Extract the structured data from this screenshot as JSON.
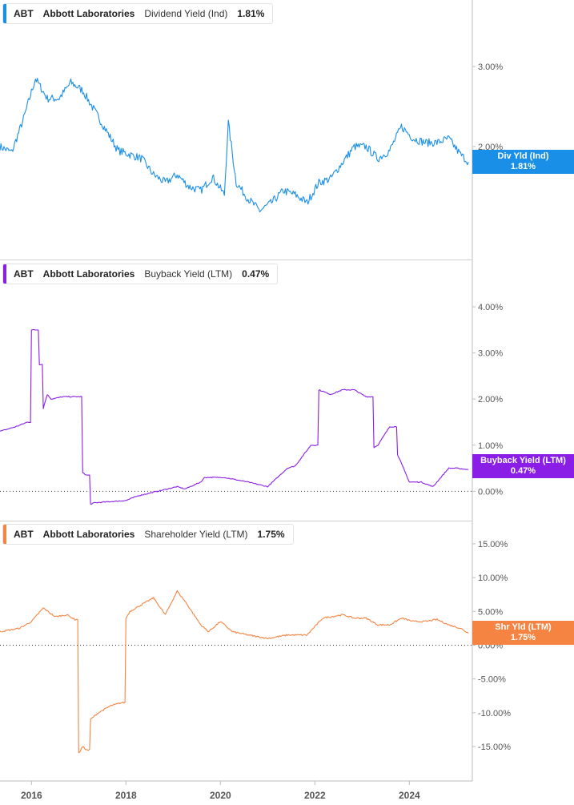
{
  "colors": {
    "dividend": "#1a8fe8",
    "buyback": "#8a1ee6",
    "shareholder": "#f58442",
    "axis": "#bdbdbd",
    "tick_text": "#555555"
  },
  "panels": [
    {
      "ticker": "ABT",
      "company": "Abbott Laboratories",
      "metric": "Dividend Yield (Ind)",
      "value": "1.81%",
      "badge_line1": "Div Yld (Ind)",
      "badge_line2": "1.81%"
    },
    {
      "ticker": "ABT",
      "company": "Abbott Laboratories",
      "metric": "Buyback Yield (LTM)",
      "value": "0.47%",
      "badge_line1": "Buyback Yield (LTM)",
      "badge_line2": "0.47%"
    },
    {
      "ticker": "ABT",
      "company": "Abbott Laboratories",
      "metric": "Shareholder Yield (LTM)",
      "value": "1.75%",
      "badge_line1": "Shr Yld (LTM)",
      "badge_line2": "1.75%"
    }
  ],
  "chart_data": [
    {
      "type": "line",
      "title": "ABT Abbott Laboratories Dividend Yield (Ind) 1.81%",
      "xlabel": "",
      "ylabel": "",
      "x_tick_labels": [
        "2016",
        "2018",
        "2020",
        "2022",
        "2024"
      ],
      "y_tick_labels": [
        "2.00%",
        "3.00%"
      ],
      "y_ticks": [
        2.0,
        3.0
      ],
      "ylim": [
        0.65,
        3.55
      ],
      "xlim": [
        "2015-05-01",
        "2025-05-01"
      ],
      "grid": false,
      "series": [
        {
          "name": "Dividend Yield (Ind)",
          "x": [
            "2015-05",
            "2015-08",
            "2015-11",
            "2016-02",
            "2016-05",
            "2016-08",
            "2016-11",
            "2017-02",
            "2017-05",
            "2017-08",
            "2017-11",
            "2018-02",
            "2018-05",
            "2018-08",
            "2018-11",
            "2019-02",
            "2019-05",
            "2019-08",
            "2019-11",
            "2020-02",
            "2020-03",
            "2020-05",
            "2020-08",
            "2020-11",
            "2021-02",
            "2021-05",
            "2021-08",
            "2021-11",
            "2022-02",
            "2022-05",
            "2022-08",
            "2022-11",
            "2023-02",
            "2023-05",
            "2023-08",
            "2023-11",
            "2024-02",
            "2024-05",
            "2024-08",
            "2024-11",
            "2025-02",
            "2025-04"
          ],
          "values": [
            2.0,
            1.93,
            2.35,
            2.85,
            2.6,
            2.6,
            2.8,
            2.7,
            2.45,
            2.2,
            1.95,
            1.9,
            1.85,
            1.65,
            1.55,
            1.65,
            1.5,
            1.45,
            1.62,
            1.4,
            2.3,
            1.55,
            1.35,
            1.2,
            1.3,
            1.45,
            1.4,
            1.3,
            1.55,
            1.6,
            1.8,
            2.0,
            2.0,
            1.85,
            1.95,
            2.25,
            2.1,
            2.05,
            2.05,
            2.1,
            1.9,
            1.81
          ]
        }
      ]
    },
    {
      "type": "line",
      "title": "ABT Abbott Laboratories Buyback Yield (LTM) 0.47%",
      "xlabel": "",
      "ylabel": "",
      "x_tick_labels": [
        "2016",
        "2018",
        "2020",
        "2022",
        "2024"
      ],
      "y_tick_labels": [
        "0.00%",
        "1.00%",
        "2.00%",
        "3.00%",
        "4.00%"
      ],
      "y_ticks": [
        0,
        1,
        2,
        3,
        4
      ],
      "ylim": [
        -0.55,
        4.4
      ],
      "xlim": [
        "2015-05-01",
        "2025-05-01"
      ],
      "grid": false,
      "series": [
        {
          "name": "Buyback Yield (LTM)",
          "x": [
            "2015-05",
            "2015-09",
            "2015-12",
            "2016-01",
            "2016-03",
            "2016-04",
            "2016-05",
            "2016-06",
            "2016-09",
            "2017-01",
            "2017-02",
            "2017-03",
            "2017-04",
            "2017-05",
            "2018-01",
            "2018-04",
            "2019-02",
            "2019-04",
            "2019-08",
            "2019-09",
            "2020-02",
            "2020-05",
            "2020-08",
            "2021-01",
            "2021-06",
            "2021-08",
            "2021-12",
            "2022-02",
            "2022-05",
            "2022-08",
            "2022-11",
            "2023-02",
            "2023-04",
            "2023-05",
            "2023-08",
            "2023-10",
            "2023-11",
            "2024-01",
            "2024-04",
            "2024-07",
            "2024-11",
            "2025-01",
            "2025-04"
          ],
          "values": [
            1.3,
            1.4,
            1.5,
            3.5,
            2.75,
            1.8,
            2.1,
            2.0,
            2.05,
            2.05,
            0.4,
            0.35,
            -0.28,
            -0.25,
            -0.2,
            -0.1,
            0.1,
            0.05,
            0.2,
            0.3,
            0.3,
            0.25,
            0.2,
            0.1,
            0.5,
            0.55,
            1.0,
            2.2,
            2.1,
            2.2,
            2.2,
            2.05,
            0.95,
            1.0,
            1.4,
            0.8,
            0.6,
            0.2,
            0.2,
            0.1,
            0.5,
            0.5,
            0.47
          ]
        }
      ]
    },
    {
      "type": "line",
      "title": "ABT Abbott Laboratories Shareholder Yield (LTM) 1.75%",
      "xlabel": "",
      "ylabel": "",
      "x_tick_labels": [
        "2016",
        "2018",
        "2020",
        "2022",
        "2024"
      ],
      "y_tick_labels": [
        "-15.00%",
        "-10.00%",
        "-5.00%",
        "0.00%",
        "5.00%",
        "10.00%",
        "15.00%"
      ],
      "y_ticks": [
        -15,
        -10,
        -5,
        0,
        5,
        10,
        15
      ],
      "ylim": [
        -19.5,
        17.0
      ],
      "xlim": [
        "2015-05-01",
        "2025-05-01"
      ],
      "grid": false,
      "series": [
        {
          "name": "Shareholder Yield (LTM)",
          "x": [
            "2015-05",
            "2015-10",
            "2016-01",
            "2016-04",
            "2016-07",
            "2016-10",
            "2016-12",
            "2017-01",
            "2017-02",
            "2017-03",
            "2017-04",
            "2017-06",
            "2017-09",
            "2017-12",
            "2018-01",
            "2018-02",
            "2018-05",
            "2018-08",
            "2018-11",
            "2019-02",
            "2019-04",
            "2019-08",
            "2019-10",
            "2020-01",
            "2020-04",
            "2020-08",
            "2021-01",
            "2021-06",
            "2021-11",
            "2022-03",
            "2022-08",
            "2022-11",
            "2023-02",
            "2023-05",
            "2023-08",
            "2023-11",
            "2024-02",
            "2024-05",
            "2024-08",
            "2024-11",
            "2025-02",
            "2025-04"
          ],
          "values": [
            2.0,
            2.5,
            3.5,
            5.5,
            4.2,
            4.5,
            3.8,
            -16.0,
            -15.0,
            -15.5,
            -11.0,
            -10.0,
            -9.0,
            -8.5,
            4.0,
            5.0,
            6.0,
            7.0,
            4.5,
            8.0,
            6.5,
            3.0,
            2.0,
            3.5,
            2.0,
            1.5,
            1.0,
            1.5,
            1.5,
            4.0,
            4.5,
            4.0,
            4.0,
            3.0,
            3.0,
            4.0,
            3.5,
            3.5,
            3.8,
            3.0,
            2.5,
            1.75
          ]
        }
      ]
    }
  ]
}
